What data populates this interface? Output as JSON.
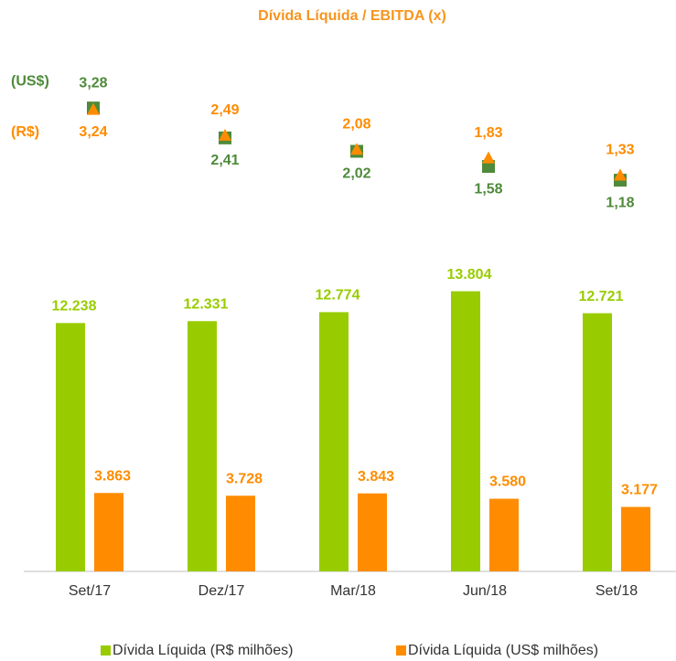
{
  "chart_data": {
    "type": "bar",
    "title": "Dívida Líquida / EBITDA (x)",
    "categories": [
      "Set/17",
      "Dez/17",
      "Mar/18",
      "Jun/18",
      "Set/18"
    ],
    "ylim": [
      0,
      25000
    ],
    "y2lim": [
      -10.2,
      4.56
    ],
    "series": [
      {
        "name": "Dívida Líquida (R$ milhões)",
        "type": "bar",
        "color": "#99cc00",
        "values": [
          12238,
          12331,
          12774,
          13804,
          12721
        ],
        "value_labels": [
          "12.238",
          "12.331",
          "12.774",
          "13.804",
          "12.721"
        ]
      },
      {
        "name": "Dívida Líquida (US$ milhões)",
        "type": "bar",
        "color": "#ff8c00",
        "values": [
          3863,
          3728,
          3843,
          3580,
          3177
        ],
        "value_labels": [
          "3.863",
          "3.728",
          "3.843",
          "3.580",
          "3.177"
        ]
      },
      {
        "name": "(US$)",
        "type": "scatter",
        "axis": "y2",
        "marker": "square",
        "color": "#4e8a3a",
        "values": [
          3.28,
          2.41,
          2.02,
          1.58,
          1.18
        ],
        "value_labels": [
          "3,28",
          "2,41",
          "2,02",
          "1,58",
          "1,18"
        ]
      },
      {
        "name": "(R$)",
        "type": "scatter",
        "axis": "y2",
        "marker": "triangle",
        "color": "#ff8c00",
        "values": [
          3.24,
          2.49,
          2.08,
          1.83,
          1.33
        ],
        "value_labels": [
          "3,24",
          "2,49",
          "2,08",
          "1,83",
          "1,33"
        ]
      }
    ],
    "legend": "bottom"
  }
}
